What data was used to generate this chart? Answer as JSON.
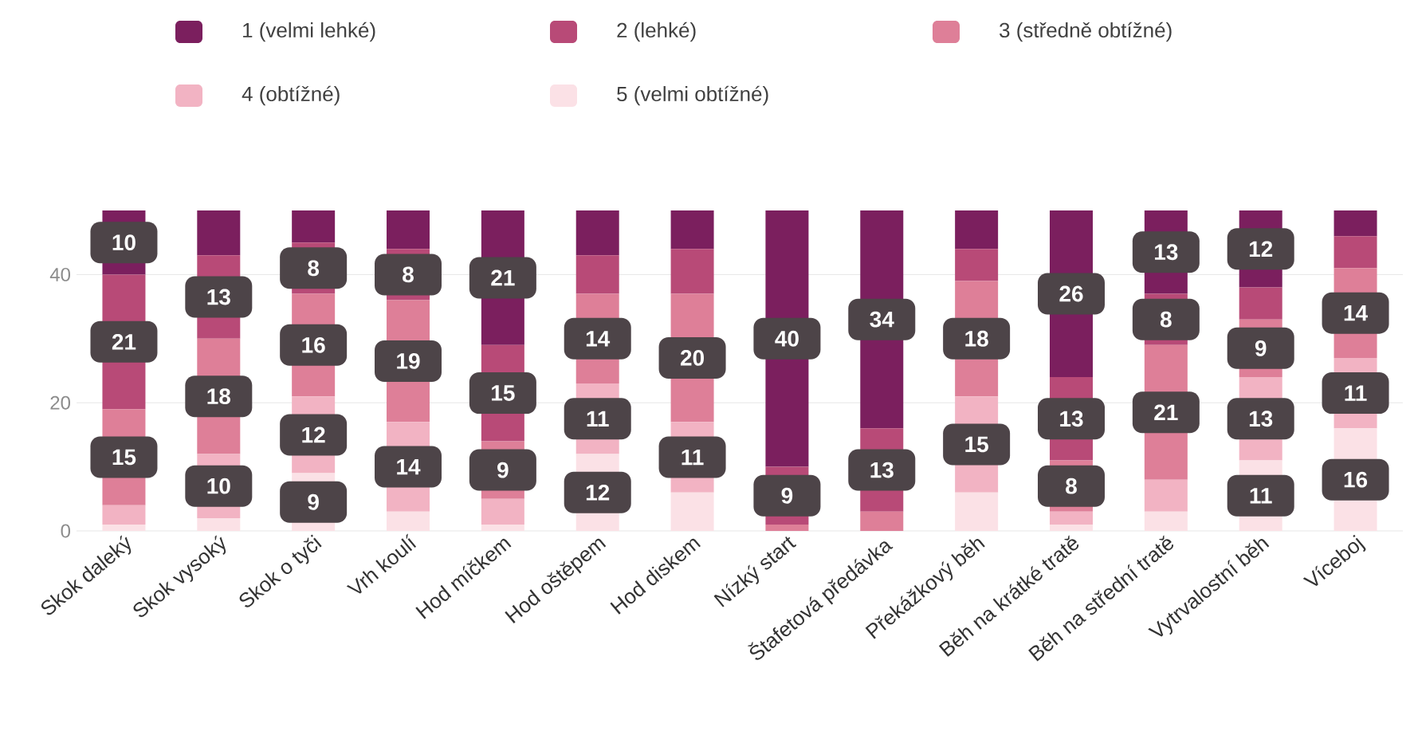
{
  "chart_data": {
    "type": "bar",
    "stacked": true,
    "categories": [
      "Skok daleký",
      "Skok vysoký",
      "Skok o tyči",
      "Vrh koulí",
      "Hod míčkem",
      "Hod oštěpem",
      "Hod diskem",
      "Nízký start",
      "Štafetová předávka",
      "Překážkový běh",
      "Běh na krátké tratě",
      "Běh na střední tratě",
      "Vytrvalostní běh",
      "Víceboj"
    ],
    "series": [
      {
        "name": "5 (velmi obtížné)",
        "color": "#fbe1e6",
        "values": [
          1,
          2,
          9,
          3,
          1,
          12,
          6,
          0,
          0,
          6,
          1,
          3,
          11,
          16
        ],
        "value_labels": [
          null,
          null,
          "9",
          null,
          null,
          "12",
          null,
          null,
          null,
          null,
          null,
          null,
          "11",
          "16"
        ]
      },
      {
        "name": "4 (obtížné)",
        "color": "#f2b3c3",
        "values": [
          3,
          10,
          12,
          14,
          4,
          11,
          11,
          0,
          0,
          15,
          2,
          5,
          13,
          11
        ],
        "value_labels": [
          null,
          "10",
          "12",
          "14",
          null,
          "11",
          "11",
          null,
          null,
          "15",
          null,
          null,
          "13",
          "11"
        ]
      },
      {
        "name": "3 (středně obtížné)",
        "color": "#de7f98",
        "values": [
          15,
          18,
          16,
          19,
          9,
          14,
          20,
          1,
          3,
          18,
          8,
          21,
          9,
          14
        ],
        "value_labels": [
          "15",
          "18",
          "16",
          "19",
          "9",
          "14",
          "20",
          null,
          null,
          "18",
          "8",
          "21",
          "9",
          "14"
        ]
      },
      {
        "name": "2 (lehké)",
        "color": "#b84a77",
        "values": [
          21,
          13,
          8,
          8,
          15,
          6,
          7,
          9,
          13,
          5,
          13,
          8,
          5,
          5
        ],
        "value_labels": [
          "21",
          "13",
          "8",
          "8",
          "15",
          null,
          null,
          "9",
          "13",
          null,
          "13",
          "8",
          null,
          null
        ]
      },
      {
        "name": "1 (velmi lehké)",
        "color": "#7b1f5e",
        "values": [
          10,
          7,
          5,
          6,
          21,
          7,
          6,
          40,
          34,
          6,
          26,
          13,
          12,
          4
        ],
        "value_labels": [
          "10",
          null,
          null,
          null,
          "21",
          null,
          null,
          "40",
          "34",
          null,
          "26",
          "13",
          "12",
          null
        ]
      }
    ],
    "ylim": [
      0,
      50
    ],
    "yticks": [
      0,
      20,
      40
    ],
    "grid": "y",
    "legend": "top"
  }
}
